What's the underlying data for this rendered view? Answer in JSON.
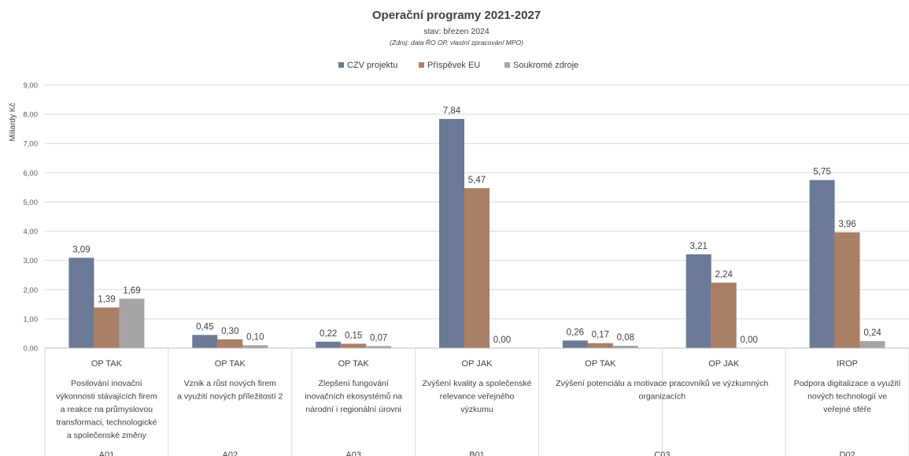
{
  "chart_data": {
    "type": "bar",
    "title": "Operační programy 2021-2027",
    "subtitle": "stav: březen 2024",
    "source": "(Zdroj: data ŘO OP, vlastní zpracování MPO)",
    "ylabel": "Miliardy Kč",
    "ylim": [
      0,
      9
    ],
    "ytick_labels": [
      "0,00",
      "1,00",
      "2,00",
      "3,00",
      "4,00",
      "5,00",
      "6,00",
      "7,00",
      "8,00",
      "9,00"
    ],
    "grid": true,
    "legend_position": "top",
    "categories": [
      {
        "program": "OP TAK",
        "name": [
          "Posilování inovační",
          "výkonnosti stávajících firem",
          "a reakce na průmyslovou",
          "transformaci, technologické",
          "a společenské změny"
        ]
      },
      {
        "program": "OP TAK",
        "name": [
          "Vznik a růst nových firem",
          "a využití nových příležitostí 2"
        ]
      },
      {
        "program": "OP TAK",
        "name": [
          "Zlepšení fungování",
          "inovačních ekosystémů na",
          "národní i regionální úrovni"
        ]
      },
      {
        "program": "OP JAK",
        "name": [
          "Zvýšení kvality a společenské",
          "relevance veřejného",
          "výzkumu"
        ]
      },
      {
        "program": "OP TAK",
        "name": []
      },
      {
        "program": "OP JAK",
        "name": []
      },
      {
        "program": "IROP",
        "name": [
          "Podpora digitalizace a využití",
          "nových technologií ve",
          "veřejné sféře"
        ]
      }
    ],
    "group_codes": [
      {
        "code": "A01",
        "span": [
          0,
          0
        ]
      },
      {
        "code": "A02",
        "span": [
          1,
          1
        ]
      },
      {
        "code": "A03",
        "span": [
          2,
          2
        ]
      },
      {
        "code": "B01",
        "span": [
          3,
          3
        ]
      },
      {
        "code": "C03",
        "span": [
          4,
          5
        ],
        "name": [
          "Zvýšení potenciálu a motivace pracovníků ve výzkumných",
          "organizacích"
        ]
      },
      {
        "code": "D02",
        "span": [
          6,
          6
        ]
      }
    ],
    "series": [
      {
        "name": "CZV projektu",
        "color": "#6b7a96",
        "values": [
          3.09,
          0.45,
          0.22,
          7.84,
          0.26,
          3.21,
          5.75
        ],
        "labels": [
          "3,09",
          "0,45",
          "0,22",
          "7,84",
          "0,26",
          "3,21",
          "5,75"
        ]
      },
      {
        "name": "Příspěvek EU",
        "color": "#a97f66",
        "values": [
          1.39,
          0.3,
          0.15,
          5.47,
          0.17,
          2.24,
          3.96
        ],
        "labels": [
          "1,39",
          "0,30",
          "0,15",
          "5,47",
          "0,17",
          "2,24",
          "3,96"
        ]
      },
      {
        "name": "Soukromé zdroje",
        "color": "#a5a5a5",
        "values": [
          1.69,
          0.1,
          0.07,
          0.0,
          0.08,
          0.0,
          0.24
        ],
        "labels": [
          "1,69",
          "0,10",
          "0,07",
          "0,00",
          "0,08",
          "0,00",
          "0,24"
        ]
      }
    ]
  }
}
